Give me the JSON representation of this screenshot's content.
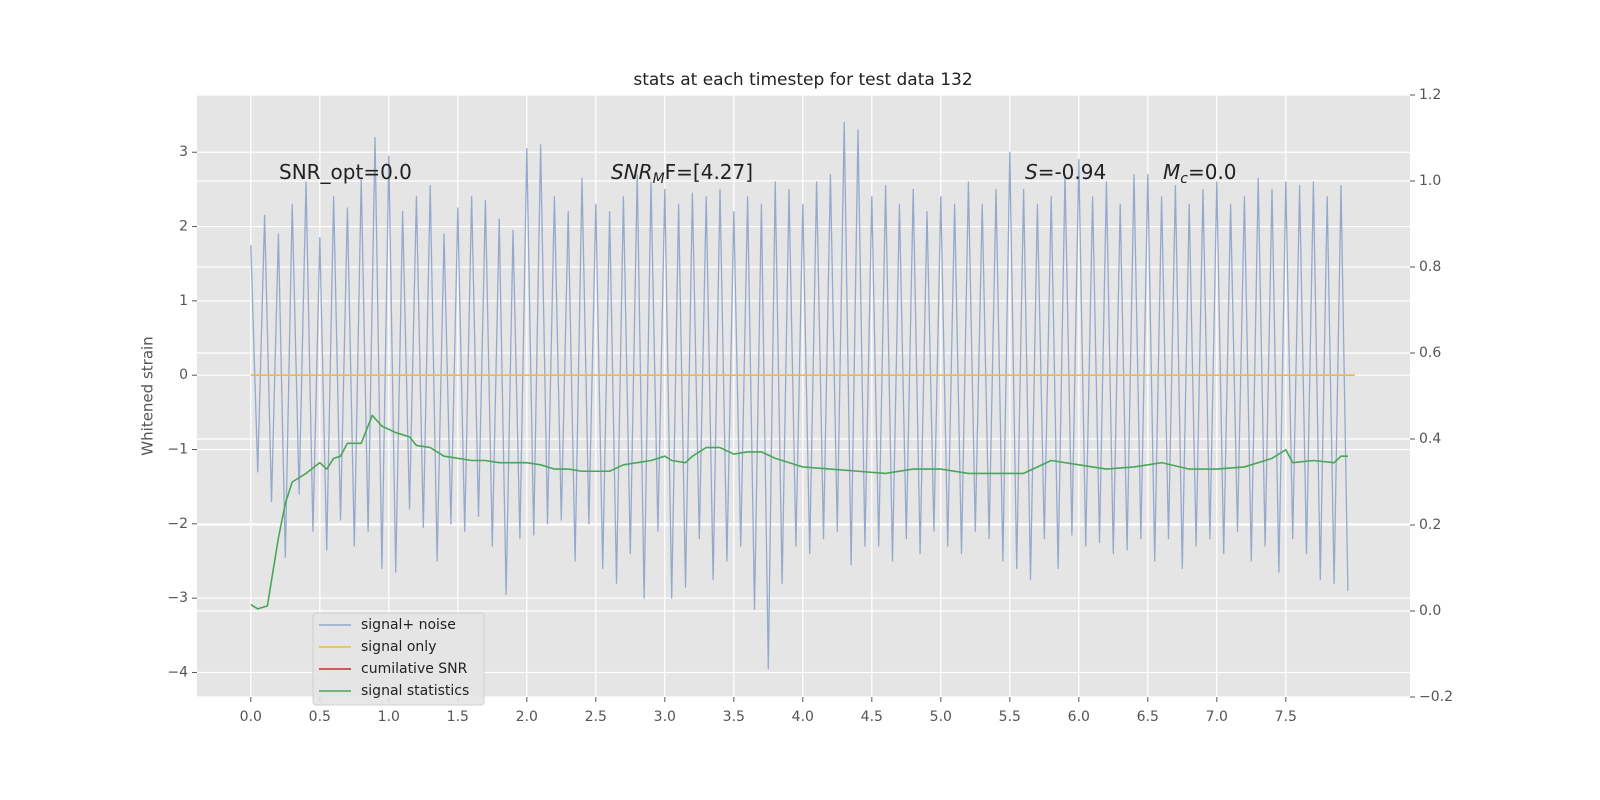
{
  "chart_data": {
    "type": "line",
    "title": "stats at each timestep for test data 132",
    "y_label": "Whitened strain",
    "grid": true,
    "legend": "lower left",
    "xlim": [
      -0.39,
      8.4
    ],
    "ylim": [
      -4.33,
      3.77
    ],
    "y2lim": [
      -0.2,
      1.2
    ],
    "xticks": [
      {
        "value": 0,
        "label": "0.0"
      },
      {
        "value": 0.5,
        "label": "0.5"
      },
      {
        "value": 1,
        "label": "1.0"
      },
      {
        "value": 1.5,
        "label": "1.5"
      },
      {
        "value": 2,
        "label": "2.0"
      },
      {
        "value": 2.5,
        "label": "2.5"
      },
      {
        "value": 3,
        "label": "3.0"
      },
      {
        "value": 3.5,
        "label": "3.5"
      },
      {
        "value": 4,
        "label": "4.0"
      },
      {
        "value": 4.5,
        "label": "4.5"
      },
      {
        "value": 5,
        "label": "5.0"
      },
      {
        "value": 5.5,
        "label": "5.5"
      },
      {
        "value": 6,
        "label": "6.0"
      },
      {
        "value": 6.5,
        "label": "6.5"
      },
      {
        "value": 7,
        "label": "7.0"
      },
      {
        "value": 7.5,
        "label": "7.5"
      }
    ],
    "yticks": [
      {
        "value": -4,
        "label": "−4"
      },
      {
        "value": -3,
        "label": "−3"
      },
      {
        "value": -2,
        "label": "−2"
      },
      {
        "value": -1,
        "label": "−1"
      },
      0,
      1,
      2,
      3
    ],
    "y2ticks": [
      {
        "value": -0.2,
        "label": "−0.2"
      },
      {
        "value": 0,
        "label": "0.0"
      },
      {
        "value": 0.2,
        "label": "0.2"
      },
      {
        "value": 0.4,
        "label": "0.4"
      },
      {
        "value": 0.6,
        "label": "0.6"
      },
      {
        "value": 0.8,
        "label": "0.8"
      },
      {
        "value": 1,
        "label": "1.0"
      },
      {
        "value": 1.2,
        "label": "1.2"
      }
    ],
    "annotations": [
      {
        "base": "SNR_opt=0.0"
      },
      {
        "base": "SNR",
        "sub": "M",
        "rest": "F=[4.27]"
      },
      {
        "base": "S",
        "rest": "=-0.94"
      },
      {
        "base": "M",
        "sub": "c",
        "rest": "=0.0"
      }
    ],
    "series": [
      {
        "name": "signal+ noise",
        "color": "#95a9cc",
        "x": [
          0,
          0.05,
          0.1,
          0.15,
          0.2,
          0.25,
          0.3,
          0.35,
          0.4,
          0.45,
          0.5,
          0.55,
          0.6,
          0.65,
          0.7,
          0.75,
          0.8,
          0.85,
          0.9,
          0.95,
          1,
          1.05,
          1.1,
          1.15,
          1.2,
          1.25,
          1.3,
          1.35,
          1.4,
          1.45,
          1.5,
          1.55,
          1.6,
          1.65,
          1.7,
          1.75,
          1.8,
          1.85,
          1.9,
          1.95,
          2,
          2.05,
          2.1,
          2.15,
          2.2,
          2.25,
          2.3,
          2.35,
          2.4,
          2.45,
          2.5,
          2.55,
          2.6,
          2.65,
          2.7,
          2.75,
          2.8,
          2.85,
          2.9,
          2.95,
          3,
          3.05,
          3.1,
          3.15,
          3.2,
          3.25,
          3.3,
          3.35,
          3.4,
          3.45,
          3.5,
          3.55,
          3.6,
          3.65,
          3.7,
          3.75,
          3.8,
          3.85,
          3.9,
          3.95,
          4,
          4.05,
          4.1,
          4.15,
          4.2,
          4.25,
          4.3,
          4.35,
          4.4,
          4.45,
          4.5,
          4.55,
          4.6,
          4.65,
          4.7,
          4.75,
          4.8,
          4.85,
          4.9,
          4.95,
          5,
          5.05,
          5.1,
          5.15,
          5.2,
          5.25,
          5.3,
          5.35,
          5.4,
          5.45,
          5.5,
          5.55,
          5.6,
          5.65,
          5.7,
          5.75,
          5.8,
          5.85,
          5.9,
          5.95,
          6,
          6.05,
          6.1,
          6.15,
          6.2,
          6.25,
          6.3,
          6.35,
          6.4,
          6.45,
          6.5,
          6.55,
          6.6,
          6.65,
          6.7,
          6.75,
          6.8,
          6.85,
          6.9,
          6.95,
          7,
          7.05,
          7.1,
          7.15,
          7.2,
          7.25,
          7.3,
          7.35,
          7.4,
          7.45,
          7.5,
          7.55,
          7.6,
          7.65,
          7.7,
          7.75,
          7.8,
          7.85,
          7.9,
          7.95
        ],
        "values": [
          1.75,
          -1.3,
          2.15,
          -1.7,
          1.9,
          -2.45,
          2.3,
          -1.6,
          2.6,
          -2.1,
          1.85,
          -2.35,
          2.4,
          -1.95,
          2.25,
          -2.3,
          2.65,
          -2.1,
          3.2,
          -2.6,
          2.95,
          -2.65,
          2.2,
          -1.8,
          2.4,
          -2.05,
          2.55,
          -2.5,
          1.9,
          -2.0,
          2.25,
          -2.1,
          2.4,
          -1.9,
          2.35,
          -2.3,
          2.1,
          -2.95,
          1.95,
          -2.2,
          3.05,
          -2.15,
          3.1,
          -2.0,
          2.4,
          -1.95,
          2.2,
          -2.5,
          2.65,
          -2.0,
          2.3,
          -2.6,
          2.2,
          -2.8,
          2.4,
          -2.4,
          2.7,
          -3.0,
          2.6,
          -2.1,
          2.5,
          -3.0,
          2.3,
          -2.85,
          2.45,
          -2.2,
          2.4,
          -2.75,
          2.5,
          -2.5,
          2.2,
          -2.3,
          2.4,
          -3.15,
          2.3,
          -3.95,
          2.6,
          -2.8,
          2.5,
          -2.3,
          2.3,
          -2.4,
          2.6,
          -2.2,
          2.7,
          -2.1,
          3.4,
          -2.55,
          3.3,
          -2.3,
          2.4,
          -2.3,
          2.55,
          -2.5,
          2.3,
          -2.2,
          2.5,
          -2.4,
          2.2,
          -2.1,
          2.4,
          -2.3,
          2.3,
          -2.4,
          2.6,
          -2.1,
          2.3,
          -2.2,
          2.5,
          -2.5,
          3.0,
          -2.6,
          2.5,
          -2.75,
          2.3,
          -2.2,
          2.4,
          -2.6,
          2.7,
          -2.15,
          2.9,
          -2.3,
          2.4,
          -2.25,
          2.6,
          -2.4,
          2.3,
          -2.35,
          2.7,
          -2.2,
          2.7,
          -2.5,
          2.4,
          -2.2,
          2.55,
          -2.6,
          2.3,
          -2.3,
          2.5,
          -2.2,
          2.6,
          -2.4,
          2.3,
          -2.1,
          2.4,
          -2.5,
          2.65,
          -2.3,
          2.5,
          -2.65,
          2.6,
          -2.2,
          2.55,
          -2.4,
          2.6,
          -2.75,
          2.4,
          -2.8,
          2.55,
          -2.9
        ]
      },
      {
        "name": "signal only",
        "color": "#f0b84a",
        "x": [
          0,
          8
        ],
        "values": [
          0,
          0
        ]
      },
      {
        "name": "cumilative SNR",
        "color": "#d62728",
        "x": [],
        "values": []
      },
      {
        "name": "signal statistics",
        "color": "#4aa657",
        "axis": "y2",
        "x": [
          0,
          0.05,
          0.12,
          0.2,
          0.25,
          0.3,
          0.4,
          0.5,
          0.55,
          0.6,
          0.65,
          0.7,
          0.8,
          0.88,
          0.95,
          1.05,
          1.15,
          1.2,
          1.3,
          1.4,
          1.5,
          1.6,
          1.7,
          1.8,
          1.9,
          2.0,
          2.1,
          2.2,
          2.3,
          2.4,
          2.5,
          2.6,
          2.7,
          2.8,
          2.9,
          3.0,
          3.05,
          3.15,
          3.2,
          3.3,
          3.4,
          3.5,
          3.6,
          3.7,
          3.8,
          3.9,
          4.0,
          4.2,
          4.4,
          4.6,
          4.8,
          5.0,
          5.2,
          5.4,
          5.6,
          5.8,
          6.0,
          6.2,
          6.4,
          6.6,
          6.8,
          7.0,
          7.2,
          7.4,
          7.5,
          7.55,
          7.7,
          7.85,
          7.9,
          7.95
        ],
        "values": [
          0.015,
          0.005,
          0.012,
          0.17,
          0.25,
          0.3,
          0.32,
          0.345,
          0.33,
          0.355,
          0.36,
          0.39,
          0.39,
          0.455,
          0.43,
          0.415,
          0.405,
          0.385,
          0.38,
          0.36,
          0.355,
          0.35,
          0.35,
          0.345,
          0.345,
          0.345,
          0.34,
          0.33,
          0.33,
          0.325,
          0.325,
          0.325,
          0.34,
          0.345,
          0.35,
          0.36,
          0.35,
          0.345,
          0.36,
          0.38,
          0.38,
          0.365,
          0.37,
          0.37,
          0.355,
          0.345,
          0.335,
          0.33,
          0.325,
          0.32,
          0.33,
          0.33,
          0.32,
          0.32,
          0.32,
          0.35,
          0.34,
          0.33,
          0.335,
          0.345,
          0.33,
          0.33,
          0.335,
          0.355,
          0.375,
          0.345,
          0.35,
          0.345,
          0.36,
          0.36
        ]
      }
    ]
  }
}
